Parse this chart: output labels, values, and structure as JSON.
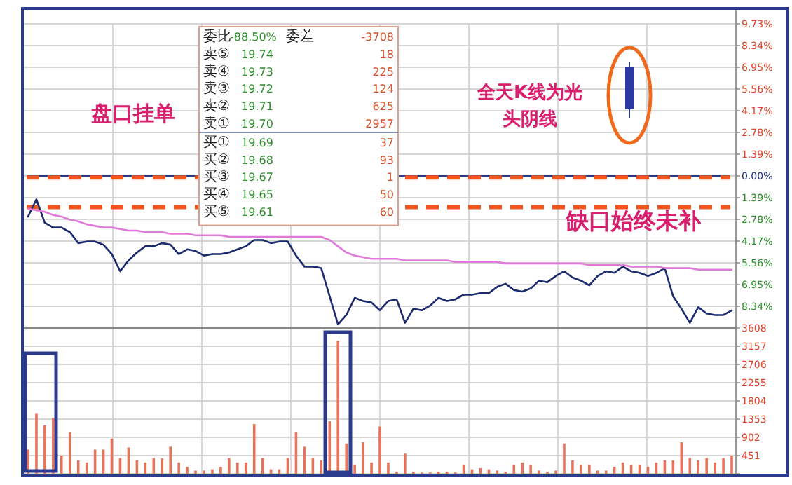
{
  "chart_data": [
    {
      "type": "line",
      "categories": [
        null,
        null,
        null,
        null,
        null,
        null,
        null,
        null,
        null,
        null,
        null,
        null,
        null,
        null,
        null,
        null,
        null,
        null,
        null,
        null,
        null,
        null,
        null,
        null,
        null,
        null,
        null,
        null,
        null,
        null,
        null,
        null,
        null,
        null,
        null,
        null,
        null,
        null,
        null,
        null,
        null,
        null,
        null,
        null,
        null,
        null,
        null,
        null,
        null,
        null,
        null,
        null,
        null,
        null,
        null,
        null,
        null,
        null,
        null,
        null,
        null,
        null,
        null,
        null,
        null,
        null,
        null,
        null,
        null,
        null,
        null,
        null,
        null,
        null,
        null,
        null,
        null,
        null,
        null,
        null,
        null,
        null,
        null,
        null,
        null
      ],
      "series": [
        {
          "color": "#1c2a6e",
          "values": [
            -2.6,
            -1.5,
            -3.0,
            -3.3,
            -3.3,
            -3.6,
            -4.3,
            -4.2,
            -4.2,
            -4.4,
            -5.0,
            -6.1,
            -5.4,
            -4.9,
            -4.5,
            -4.5,
            -4.3,
            -4.4,
            -5.0,
            -4.7,
            -4.8,
            -5.1,
            -5.0,
            -5.0,
            -4.9,
            -4.7,
            -4.5,
            -4.1,
            -4.1,
            -4.3,
            -4.2,
            -4.2,
            -5.1,
            -5.8,
            -5.8,
            -5.9,
            -7.7,
            -9.5,
            -8.9,
            -7.8,
            -8.0,
            -8.1,
            -8.6,
            -8.0,
            -7.9,
            -9.4,
            -8.5,
            -8.6,
            -8.3,
            -7.8,
            -8.0,
            -7.9,
            -7.6,
            -7.6,
            -7.5,
            -7.5,
            -7.1,
            -6.9,
            -7.3,
            -7.4,
            -7.2,
            -6.7,
            -6.8,
            -6.4,
            -6.1,
            -6.5,
            -6.7,
            -7.0,
            -6.4,
            -6.1,
            -6.2,
            -5.8,
            -6.1,
            -6.2,
            -6.4,
            -6.2,
            -5.9,
            -7.7,
            -8.5,
            -9.4,
            -8.4,
            -8.8,
            -8.9,
            -8.9,
            -8.6
          ]
        },
        {
          "color": "#e07ad8",
          "values": [
            -2.1,
            -2.2,
            -2.3,
            -2.5,
            -2.6,
            -2.8,
            -2.9,
            -3.1,
            -3.2,
            -3.3,
            -3.3,
            -3.4,
            -3.5,
            -3.5,
            -3.6,
            -3.6,
            -3.6,
            -3.7,
            -3.7,
            -3.7,
            -3.8,
            -3.8,
            -3.8,
            -3.8,
            -3.9,
            -3.9,
            -3.9,
            -3.9,
            -3.9,
            -3.9,
            -3.9,
            -3.9,
            -3.9,
            -3.9,
            -3.9,
            -3.9,
            -4.1,
            -4.5,
            -4.9,
            -5.1,
            -5.2,
            -5.3,
            -5.3,
            -5.3,
            -5.3,
            -5.4,
            -5.4,
            -5.4,
            -5.4,
            -5.4,
            -5.4,
            -5.5,
            -5.5,
            -5.5,
            -5.5,
            -5.5,
            -5.5,
            -5.6,
            -5.6,
            -5.6,
            -5.6,
            -5.6,
            -5.6,
            -5.6,
            -5.6,
            -5.6,
            -5.6,
            -5.7,
            -5.7,
            -5.7,
            -5.7,
            -5.7,
            -5.8,
            -5.8,
            -5.8,
            -5.8,
            -5.9,
            -5.9,
            -5.9,
            -5.9,
            -6.0,
            -6.0,
            -6.0,
            -6.0,
            -6.0
          ]
        }
      ],
      "ylim": [
        -9.73,
        9.73
      ],
      "yticks": [
        {
          "value": 9.73,
          "label": "9.73%"
        },
        {
          "value": 8.34,
          "label": "8.34%"
        },
        {
          "value": 6.95,
          "label": "6.95%"
        },
        {
          "value": 5.56,
          "label": "5.56%"
        },
        {
          "value": 4.17,
          "label": "4.17%"
        },
        {
          "value": 2.78,
          "label": "2.78%"
        },
        {
          "value": 1.39,
          "label": "1.39%"
        },
        {
          "value": 0,
          "label": "0.00%"
        },
        {
          "value": -1.39,
          "label": "1.39%"
        },
        {
          "value": -2.78,
          "label": "2.78%"
        },
        {
          "value": -4.17,
          "label": "4.17%"
        },
        {
          "value": -5.56,
          "label": "5.56%"
        },
        {
          "value": -6.95,
          "label": "6.95%"
        },
        {
          "value": -8.34,
          "label": "8.34%"
        }
      ],
      "tick_labels": "y",
      "grid": true,
      "ref_lines": [
        {
          "axis": "y",
          "value": 0,
          "color": "#2b3a8c",
          "line_style": "solid"
        },
        {
          "axis": "y",
          "value": -0.1,
          "color": "#f0561e",
          "line_style": "dashed"
        },
        {
          "axis": "y",
          "value": -2.0,
          "color": "#f0561e",
          "line_style": "dashed"
        }
      ],
      "annotations": [
        "盘口挂单",
        "全天K线为光",
        "头阴线",
        "缺口始终未补",
        "委比",
        "-88.50%",
        "委差",
        "-3708",
        "卖⑤",
        "19.74",
        "18",
        "卖④",
        "19.73",
        "225",
        "卖③",
        "19.72",
        "124",
        "卖②",
        "19.71",
        "625",
        "卖①",
        "19.70",
        "2957",
        "买①",
        "19.69",
        "37",
        "买②",
        "19.68",
        "93",
        "买③",
        "19.67",
        "1",
        "买④",
        "19.65",
        "50",
        "买⑤",
        "19.61",
        "60"
      ]
    },
    {
      "type": "bar",
      "categories": [
        null,
        null,
        null,
        null,
        null,
        null,
        null,
        null,
        null,
        null,
        null,
        null,
        null,
        null,
        null,
        null,
        null,
        null,
        null,
        null,
        null,
        null,
        null,
        null,
        null,
        null,
        null,
        null,
        null,
        null,
        null,
        null,
        null,
        null,
        null,
        null,
        null,
        null,
        null,
        null,
        null,
        null,
        null,
        null,
        null,
        null,
        null,
        null,
        null,
        null,
        null,
        null,
        null,
        null,
        null,
        null,
        null,
        null,
        null,
        null,
        null,
        null,
        null,
        null,
        null,
        null,
        null,
        null,
        null,
        null,
        null,
        null,
        null,
        null,
        null,
        null,
        null,
        null,
        null,
        null,
        null,
        null,
        null,
        null,
        null
      ],
      "color": "#e8735a",
      "values": [
        600,
        1500,
        1200,
        1380,
        450,
        1030,
        330,
        280,
        600,
        600,
        870,
        390,
        650,
        330,
        280,
        390,
        380,
        670,
        280,
        170,
        80,
        80,
        110,
        170,
        390,
        280,
        280,
        1230,
        390,
        110,
        110,
        390,
        1030,
        670,
        390,
        330,
        1300,
        3290,
        750,
        220,
        780,
        280,
        1170,
        280,
        50,
        500,
        50,
        30,
        30,
        50,
        50,
        30,
        220,
        110,
        140,
        110,
        80,
        50,
        220,
        280,
        220,
        80,
        50,
        80,
        750,
        330,
        220,
        220,
        80,
        80,
        170,
        280,
        220,
        220,
        170,
        280,
        330,
        330,
        780,
        390,
        330,
        390,
        280,
        390,
        450
      ],
      "ylim": [
        0,
        3608
      ],
      "yticks": [
        {
          "value": 0,
          "label": null
        },
        451,
        902,
        1353,
        1804,
        2255,
        2706,
        3157,
        3608
      ],
      "tick_labels": "y",
      "grid": true
    }
  ]
}
